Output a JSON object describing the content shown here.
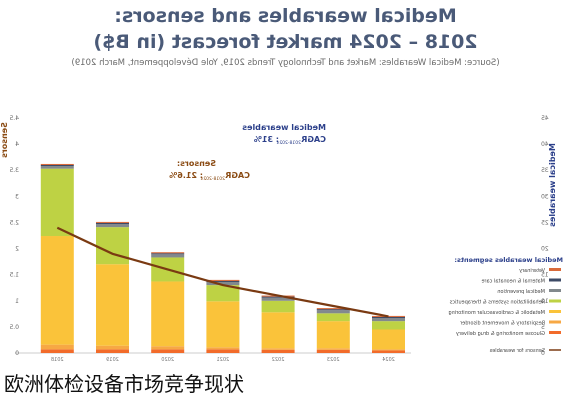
{
  "header": {
    "title_line1": "Medical wearables and sensors:",
    "title_line2": "2018 – 2024 market forecast (in B$)",
    "source": "(Source: Medical Wearables: Market and Technology Trends 2019, Yole Développement, March 2019)"
  },
  "caption": "欧洲体检设备市场竞争现状",
  "chart_data": {
    "type": "bar",
    "stacked": true,
    "categories": [
      "2018",
      "2019",
      "2020",
      "2021",
      "2022",
      "2023",
      "2024"
    ],
    "y_left": {
      "label": "Sensors",
      "ylim": [
        0,
        4.5
      ],
      "ticks": [
        "0",
        "0.5",
        "1",
        "1.5",
        "2",
        "2.5",
        "3",
        "3.5",
        "4",
        "4.5"
      ]
    },
    "y_right": {
      "label": "Medical wearables",
      "ylim": [
        0,
        45
      ],
      "ticks": [
        "0",
        "5",
        "10",
        "15",
        "20",
        "25",
        "30",
        "35",
        "40",
        "45"
      ]
    },
    "series": [
      {
        "name": "Glucose monitoring & drug delivery",
        "color": "#f26b2a",
        "values": [
          0.7,
          0.7,
          0.7,
          0.7,
          0.6,
          0.6,
          0.5
        ]
      },
      {
        "name": "Respiratory & movement disorder",
        "color": "#f7a844",
        "values": [
          0.9,
          0.7,
          0.6,
          0.4,
          0.3,
          0.3,
          0.2
        ]
      },
      {
        "name": "Metabolic & cardiovascular monitoring",
        "color": "#fac33a",
        "values": [
          20.8,
          15.6,
          12.4,
          8.8,
          6.9,
          5.2,
          3.8
        ]
      },
      {
        "name": "Rehabilitation systems & therapeutics",
        "color": "#bed244",
        "values": [
          12.9,
          7.1,
          4.6,
          3.1,
          2.2,
          1.5,
          1.6
        ]
      },
      {
        "name": "Medical prevention",
        "color": "#82898d",
        "values": [
          0.5,
          0.6,
          0.6,
          0.6,
          0.6,
          0.6,
          0.6
        ]
      },
      {
        "name": "Maternal & neonatal care",
        "color": "#3d4a66",
        "values": [
          0.2,
          0.2,
          0.2,
          0.2,
          0.2,
          0.2,
          0.2
        ]
      },
      {
        "name": "Veterinary",
        "color": "#d96a3a",
        "values": [
          0.2,
          0.2,
          0.2,
          0.2,
          0.2,
          0.2,
          0.2
        ]
      }
    ],
    "line": {
      "name": "Sensors for wearables",
      "color": "#7a3a12",
      "values": [
        2.4,
        1.9,
        1.6,
        1.3,
        1.1,
        0.9,
        0.7
      ]
    },
    "legend": {
      "title": "Medical wearables segments:",
      "placement": "right"
    },
    "annotations": [
      {
        "text_line1": "Medical wearables",
        "text_line2": "CAGR",
        "text_sub": "2018-2024",
        "text_value": ": 31%",
        "color": "#2b3f8a"
      },
      {
        "text_line1": "Sensors:",
        "text_line2": "CAGR",
        "text_sub": "2018-2024",
        "text_value": ": 21.6%",
        "color": "#8a4a12"
      }
    ]
  }
}
